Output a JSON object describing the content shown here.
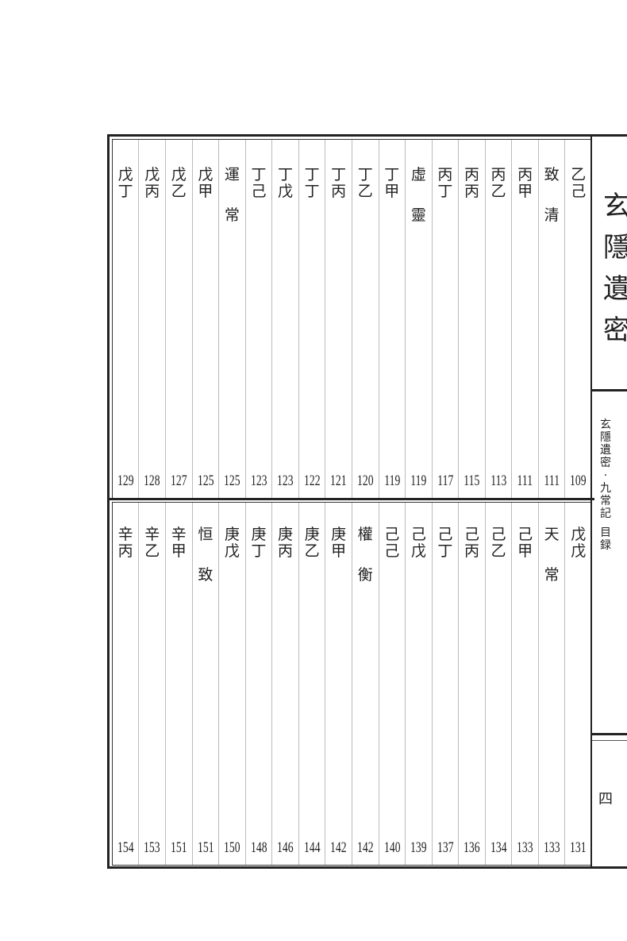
{
  "book_title": [
    "玄",
    "隱",
    "遺",
    "密"
  ],
  "spine_text": [
    "玄",
    "隱",
    "遺",
    "密",
    "·",
    "九",
    "常",
    "記",
    "",
    "目",
    "録"
  ],
  "page_number": "四",
  "top_entries": [
    {
      "chars": [
        "乙",
        "己"
      ],
      "page": "109",
      "heading": false
    },
    {
      "chars": [
        "致",
        "清"
      ],
      "page": "111",
      "heading": true
    },
    {
      "chars": [
        "丙",
        "甲"
      ],
      "page": "111",
      "heading": false
    },
    {
      "chars": [
        "丙",
        "乙"
      ],
      "page": "113",
      "heading": false
    },
    {
      "chars": [
        "丙",
        "丙"
      ],
      "page": "115",
      "heading": false
    },
    {
      "chars": [
        "丙",
        "丁"
      ],
      "page": "117",
      "heading": false
    },
    {
      "chars": [
        "虛",
        "靈"
      ],
      "page": "119",
      "heading": true
    },
    {
      "chars": [
        "丁",
        "甲"
      ],
      "page": "119",
      "heading": false
    },
    {
      "chars": [
        "丁",
        "乙"
      ],
      "page": "120",
      "heading": false
    },
    {
      "chars": [
        "丁",
        "丙"
      ],
      "page": "121",
      "heading": false
    },
    {
      "chars": [
        "丁",
        "丁"
      ],
      "page": "122",
      "heading": false
    },
    {
      "chars": [
        "丁",
        "戊"
      ],
      "page": "123",
      "heading": false
    },
    {
      "chars": [
        "丁",
        "己"
      ],
      "page": "123",
      "heading": false
    },
    {
      "chars": [
        "運",
        "常"
      ],
      "page": "125",
      "heading": true
    },
    {
      "chars": [
        "戊",
        "甲"
      ],
      "page": "125",
      "heading": false
    },
    {
      "chars": [
        "戊",
        "乙"
      ],
      "page": "127",
      "heading": false
    },
    {
      "chars": [
        "戊",
        "丙"
      ],
      "page": "128",
      "heading": false
    },
    {
      "chars": [
        "戊",
        "丁"
      ],
      "page": "129",
      "heading": false
    }
  ],
  "bottom_entries": [
    {
      "chars": [
        "戊",
        "戊"
      ],
      "page": "131",
      "heading": false
    },
    {
      "chars": [
        "天",
        "常"
      ],
      "page": "133",
      "heading": true
    },
    {
      "chars": [
        "己",
        "甲"
      ],
      "page": "133",
      "heading": false
    },
    {
      "chars": [
        "己",
        "乙"
      ],
      "page": "134",
      "heading": false
    },
    {
      "chars": [
        "己",
        "丙"
      ],
      "page": "136",
      "heading": false
    },
    {
      "chars": [
        "己",
        "丁"
      ],
      "page": "137",
      "heading": false
    },
    {
      "chars": [
        "己",
        "戊"
      ],
      "page": "139",
      "heading": false
    },
    {
      "chars": [
        "己",
        "己"
      ],
      "page": "140",
      "heading": false
    },
    {
      "chars": [
        "權",
        "衡"
      ],
      "page": "142",
      "heading": true
    },
    {
      "chars": [
        "庚",
        "甲"
      ],
      "page": "142",
      "heading": false
    },
    {
      "chars": [
        "庚",
        "乙"
      ],
      "page": "144",
      "heading": false
    },
    {
      "chars": [
        "庚",
        "丙"
      ],
      "page": "146",
      "heading": false
    },
    {
      "chars": [
        "庚",
        "丁"
      ],
      "page": "148",
      "heading": false
    },
    {
      "chars": [
        "庚",
        "戊"
      ],
      "page": "150",
      "heading": false
    },
    {
      "chars": [
        "恒",
        "致"
      ],
      "page": "151",
      "heading": true
    },
    {
      "chars": [
        "辛",
        "甲"
      ],
      "page": "151",
      "heading": false
    },
    {
      "chars": [
        "辛",
        "乙"
      ],
      "page": "153",
      "heading": false
    },
    {
      "chars": [
        "辛",
        "丙"
      ],
      "page": "154",
      "heading": false
    }
  ]
}
